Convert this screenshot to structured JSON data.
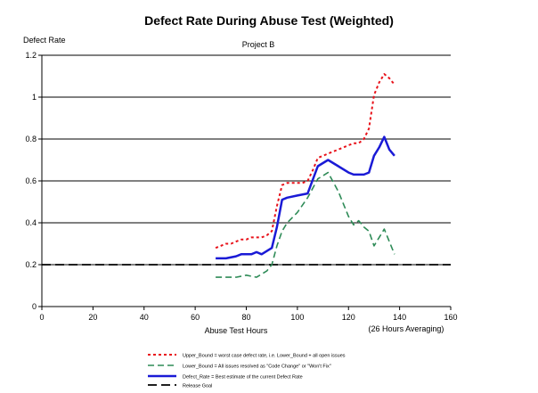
{
  "chart_data": {
    "type": "line",
    "title": "Defect Rate During Abuse Test (Weighted)",
    "subtitle": "Project B",
    "ylabel": "Defect Rate",
    "xlabel": "Abuse Test Hours",
    "xlabel_note": "(26 Hours Averaging)",
    "xlim": [
      0,
      160
    ],
    "ylim": [
      0,
      1.2
    ],
    "x_ticks": [
      0,
      20,
      40,
      60,
      80,
      100,
      120,
      140,
      160
    ],
    "y_ticks": [
      0,
      0.2,
      0.4,
      0.6,
      0.8,
      1,
      1.2
    ],
    "x_tick_labels": [
      "0",
      "20",
      "40",
      "60",
      "80",
      "100",
      "120",
      "140",
      "160"
    ],
    "y_tick_labels": [
      "0",
      "0.2",
      "0.4",
      "0.6",
      "0.8",
      "1",
      "1.2"
    ],
    "grid": "horizontal",
    "legend_position": "bottom",
    "series": [
      {
        "name": "Upper_Bound = worst case defect rate, i.e. Lower_Bound + all open issues",
        "color": "#e8121a",
        "style": "dotted",
        "points": [
          [
            68,
            0.28
          ],
          [
            70,
            0.29
          ],
          [
            72,
            0.3
          ],
          [
            74,
            0.3
          ],
          [
            76,
            0.31
          ],
          [
            78,
            0.32
          ],
          [
            80,
            0.32
          ],
          [
            82,
            0.33
          ],
          [
            84,
            0.33
          ],
          [
            86,
            0.33
          ],
          [
            88,
            0.34
          ],
          [
            90,
            0.36
          ],
          [
            92,
            0.48
          ],
          [
            94,
            0.58
          ],
          [
            96,
            0.59
          ],
          [
            98,
            0.59
          ],
          [
            100,
            0.59
          ],
          [
            102,
            0.59
          ],
          [
            104,
            0.6
          ],
          [
            106,
            0.65
          ],
          [
            108,
            0.71
          ],
          [
            110,
            0.72
          ],
          [
            112,
            0.73
          ],
          [
            114,
            0.74
          ],
          [
            116,
            0.75
          ],
          [
            118,
            0.76
          ],
          [
            120,
            0.77
          ],
          [
            122,
            0.78
          ],
          [
            124,
            0.78
          ],
          [
            126,
            0.8
          ],
          [
            128,
            0.85
          ],
          [
            130,
            1.01
          ],
          [
            132,
            1.07
          ],
          [
            134,
            1.11
          ],
          [
            136,
            1.09
          ],
          [
            138,
            1.06
          ]
        ]
      },
      {
        "name": "Lower_Bound = All issues resolved as \"Code Change\" or \"Won't Fix\"",
        "color": "#2e8b57",
        "style": "dashed",
        "points": [
          [
            68,
            0.14
          ],
          [
            72,
            0.14
          ],
          [
            76,
            0.14
          ],
          [
            80,
            0.15
          ],
          [
            84,
            0.14
          ],
          [
            88,
            0.17
          ],
          [
            90,
            0.2
          ],
          [
            92,
            0.29
          ],
          [
            94,
            0.36
          ],
          [
            96,
            0.4
          ],
          [
            100,
            0.45
          ],
          [
            104,
            0.52
          ],
          [
            108,
            0.61
          ],
          [
            112,
            0.64
          ],
          [
            116,
            0.55
          ],
          [
            120,
            0.43
          ],
          [
            122,
            0.39
          ],
          [
            124,
            0.41
          ],
          [
            126,
            0.38
          ],
          [
            128,
            0.36
          ],
          [
            130,
            0.29
          ],
          [
            132,
            0.33
          ],
          [
            134,
            0.37
          ],
          [
            136,
            0.31
          ],
          [
            138,
            0.25
          ]
        ]
      },
      {
        "name": "Defect_Rate = Best estimate of the current Defect Rate",
        "color": "#1a1ad6",
        "style": "solid",
        "points": [
          [
            68,
            0.23
          ],
          [
            72,
            0.23
          ],
          [
            76,
            0.24
          ],
          [
            78,
            0.25
          ],
          [
            82,
            0.25
          ],
          [
            84,
            0.26
          ],
          [
            86,
            0.25
          ],
          [
            90,
            0.28
          ],
          [
            92,
            0.38
          ],
          [
            94,
            0.51
          ],
          [
            96,
            0.52
          ],
          [
            100,
            0.53
          ],
          [
            104,
            0.54
          ],
          [
            108,
            0.67
          ],
          [
            112,
            0.7
          ],
          [
            116,
            0.67
          ],
          [
            120,
            0.64
          ],
          [
            122,
            0.63
          ],
          [
            126,
            0.63
          ],
          [
            128,
            0.64
          ],
          [
            130,
            0.72
          ],
          [
            132,
            0.76
          ],
          [
            134,
            0.81
          ],
          [
            136,
            0.75
          ],
          [
            138,
            0.72
          ]
        ]
      },
      {
        "name": "Release Goal",
        "color": "#000000",
        "style": "longdash",
        "points": [
          [
            0,
            0.2
          ],
          [
            160,
            0.2
          ]
        ]
      }
    ]
  }
}
